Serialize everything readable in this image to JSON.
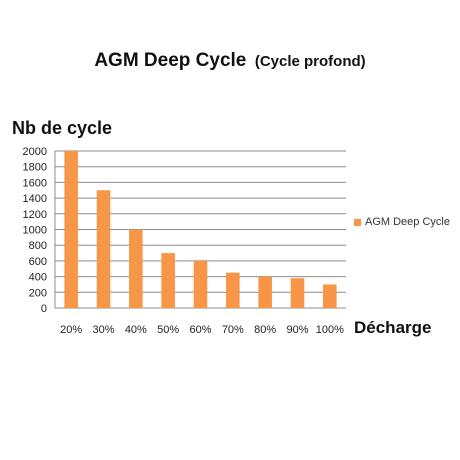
{
  "chart_data": {
    "type": "bar",
    "title": "AGM Deep Cycle",
    "subtitle": "(Cycle profond)",
    "ylabel": "Nb de cycle",
    "xlabel": "Décharge",
    "categories": [
      "20%",
      "30%",
      "40%",
      "50%",
      "60%",
      "70%",
      "80%",
      "90%",
      "100%"
    ],
    "series": [
      {
        "name": "AGM Deep Cycle",
        "values": [
          2000,
          1500,
          1000,
          700,
          600,
          450,
          400,
          380,
          300
        ]
      }
    ],
    "ylim": [
      0,
      2000
    ],
    "yticks": [
      0,
      200,
      400,
      600,
      800,
      1000,
      1200,
      1400,
      1600,
      1800,
      2000
    ],
    "grid": true,
    "legend": "right",
    "bar_color": "#f79646",
    "grid_color": "#8c8c8c"
  }
}
